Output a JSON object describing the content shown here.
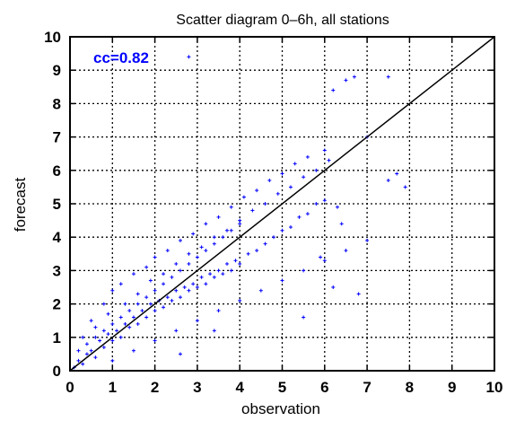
{
  "chart_data": {
    "type": "scatter",
    "title": "Scatter diagram 0–6h, all stations",
    "xlabel": "observation",
    "ylabel": "forecast",
    "xlim": [
      0,
      10
    ],
    "ylim": [
      0,
      10
    ],
    "xticks": [
      "0",
      "1",
      "2",
      "3",
      "4",
      "5",
      "6",
      "7",
      "8",
      "9",
      "10"
    ],
    "yticks": [
      "0",
      "1",
      "2",
      "3",
      "4",
      "5",
      "6",
      "7",
      "8",
      "9",
      "10"
    ],
    "grid": true,
    "annotation": "cc=0.82",
    "colors": {
      "points": "#0000ff",
      "annotation": "#0000ff",
      "reference_line": "#000000",
      "grid": "#000000"
    },
    "reference_line": {
      "from": [
        0,
        0
      ],
      "to": [
        10,
        10
      ]
    },
    "series": [
      {
        "points": [
          [
            0.1,
            0.1
          ],
          [
            0.2,
            0.3
          ],
          [
            0.3,
            0.2
          ],
          [
            0.4,
            0.5
          ],
          [
            0.5,
            0.6
          ],
          [
            0.6,
            0.4
          ],
          [
            0.7,
            0.9
          ],
          [
            0.8,
            0.7
          ],
          [
            0.9,
            1.1
          ],
          [
            1.0,
            0.9
          ],
          [
            1.1,
            1.2
          ],
          [
            1.2,
            1.0
          ],
          [
            1.3,
            1.4
          ],
          [
            1.4,
            1.3
          ],
          [
            1.5,
            1.6
          ],
          [
            1.6,
            1.4
          ],
          [
            1.7,
            1.8
          ],
          [
            1.8,
            1.6
          ],
          [
            1.9,
            2.0
          ],
          [
            2.0,
            1.8
          ],
          [
            2.1,
            2.1
          ],
          [
            2.2,
            1.9
          ],
          [
            2.3,
            2.2
          ],
          [
            2.4,
            2.1
          ],
          [
            2.5,
            2.4
          ],
          [
            2.6,
            2.2
          ],
          [
            2.7,
            2.5
          ],
          [
            2.8,
            2.4
          ],
          [
            2.9,
            2.6
          ],
          [
            3.0,
            2.5
          ],
          [
            3.1,
            2.8
          ],
          [
            3.2,
            2.6
          ],
          [
            3.3,
            2.9
          ],
          [
            3.4,
            2.8
          ],
          [
            3.5,
            3.0
          ],
          [
            3.6,
            2.9
          ],
          [
            3.7,
            3.2
          ],
          [
            3.8,
            3.0
          ],
          [
            3.9,
            3.3
          ],
          [
            4.0,
            3.2
          ],
          [
            4.2,
            3.5
          ],
          [
            4.4,
            3.6
          ],
          [
            4.6,
            3.8
          ],
          [
            4.8,
            4.0
          ],
          [
            5.0,
            4.2
          ],
          [
            5.2,
            4.3
          ],
          [
            5.4,
            4.6
          ],
          [
            5.6,
            4.7
          ],
          [
            5.8,
            5.0
          ],
          [
            6.0,
            5.1
          ],
          [
            0.5,
            1.5
          ],
          [
            0.8,
            2.0
          ],
          [
            1.0,
            2.4
          ],
          [
            1.2,
            2.6
          ],
          [
            1.5,
            2.9
          ],
          [
            1.8,
            3.1
          ],
          [
            2.0,
            3.4
          ],
          [
            2.3,
            3.6
          ],
          [
            2.6,
            3.9
          ],
          [
            2.9,
            4.1
          ],
          [
            3.2,
            4.4
          ],
          [
            3.5,
            4.6
          ],
          [
            3.8,
            4.9
          ],
          [
            4.1,
            5.2
          ],
          [
            4.4,
            5.4
          ],
          [
            4.7,
            5.7
          ],
          [
            5.0,
            5.9
          ],
          [
            5.3,
            6.2
          ],
          [
            5.6,
            6.4
          ],
          [
            6.0,
            6.6
          ],
          [
            1.0,
            0.3
          ],
          [
            1.5,
            0.6
          ],
          [
            2.0,
            0.9
          ],
          [
            2.5,
            1.2
          ],
          [
            3.0,
            1.5
          ],
          [
            3.5,
            1.8
          ],
          [
            4.0,
            2.1
          ],
          [
            4.5,
            2.4
          ],
          [
            5.0,
            2.7
          ],
          [
            5.5,
            3.0
          ],
          [
            6.0,
            3.3
          ],
          [
            6.5,
            3.6
          ],
          [
            7.0,
            3.9
          ],
          [
            5.5,
            1.6
          ],
          [
            6.2,
            2.5
          ],
          [
            6.8,
            2.3
          ],
          [
            7.5,
            5.7
          ],
          [
            7.7,
            5.9
          ],
          [
            7.9,
            5.5
          ],
          [
            7.0,
            7.0
          ],
          [
            6.5,
            8.7
          ],
          [
            6.2,
            8.4
          ],
          [
            6.7,
            8.8
          ],
          [
            7.5,
            8.8
          ],
          [
            6.3,
            4.9
          ],
          [
            5.9,
            3.4
          ],
          [
            6.4,
            4.4
          ],
          [
            2.8,
            9.4
          ],
          [
            2.6,
            0.5
          ],
          [
            3.4,
            1.2
          ],
          [
            0.3,
            1.0
          ],
          [
            0.6,
            1.3
          ],
          [
            0.9,
            1.7
          ],
          [
            1.3,
            2.0
          ],
          [
            1.6,
            2.3
          ],
          [
            1.9,
            2.7
          ],
          [
            2.2,
            2.9
          ],
          [
            2.5,
            3.2
          ],
          [
            2.8,
            3.5
          ],
          [
            3.1,
            3.7
          ],
          [
            3.4,
            4.0
          ],
          [
            3.7,
            4.2
          ],
          [
            4.0,
            4.5
          ],
          [
            4.3,
            4.8
          ],
          [
            4.6,
            5.0
          ],
          [
            4.9,
            5.3
          ],
          [
            5.2,
            5.5
          ],
          [
            5.5,
            5.8
          ],
          [
            5.8,
            6.0
          ],
          [
            6.1,
            6.3
          ],
          [
            0.2,
            0.6
          ],
          [
            0.4,
            0.8
          ],
          [
            0.6,
            1.0
          ],
          [
            0.8,
            1.2
          ],
          [
            1.0,
            1.4
          ],
          [
            1.2,
            1.6
          ],
          [
            1.4,
            1.8
          ],
          [
            1.6,
            2.0
          ],
          [
            1.8,
            2.2
          ],
          [
            2.0,
            2.4
          ],
          [
            2.2,
            2.6
          ],
          [
            2.4,
            2.8
          ],
          [
            2.6,
            3.0
          ],
          [
            2.8,
            3.2
          ],
          [
            3.0,
            3.4
          ],
          [
            3.2,
            3.6
          ],
          [
            3.4,
            3.8
          ],
          [
            3.6,
            4.0
          ],
          [
            3.8,
            4.2
          ],
          [
            4.0,
            4.4
          ]
        ]
      }
    ]
  }
}
